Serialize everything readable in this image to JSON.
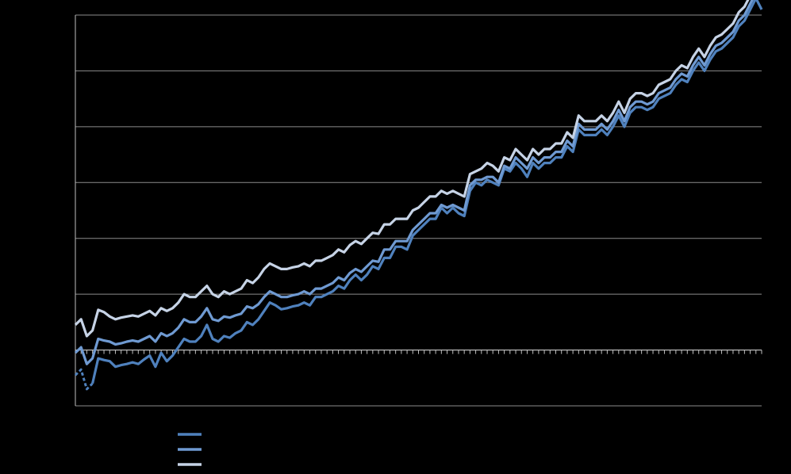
{
  "chart_data": {
    "type": "line",
    "title": "",
    "xlabel": "",
    "ylabel": "",
    "tick_labels_printed": false,
    "ylim": [
      -1,
      6
    ],
    "xlim": [
      0,
      120
    ],
    "grid": true,
    "y_gridlines": [
      -1,
      0,
      1,
      2,
      3,
      4,
      5,
      6
    ],
    "x_minor_ticks_on_zero_axis": 120,
    "legend_position": "bottom-left",
    "colors": {
      "background": "#000000",
      "grid": "#8c8c8c",
      "axis": "#bfbfbf",
      "series": [
        "#4f81bd",
        "#6f9ad2",
        "#c6d3e6"
      ]
    },
    "x": [
      0,
      1,
      2,
      3,
      4,
      5,
      6,
      7,
      8,
      9,
      10,
      11,
      12,
      13,
      14,
      15,
      16,
      17,
      18,
      19,
      20,
      21,
      22,
      23,
      24,
      25,
      26,
      27,
      28,
      29,
      30,
      31,
      32,
      33,
      34,
      35,
      36,
      37,
      38,
      39,
      40,
      41,
      42,
      43,
      44,
      45,
      46,
      47,
      48,
      49,
      50,
      51,
      52,
      53,
      54,
      55,
      56,
      57,
      58,
      59,
      60,
      61,
      62,
      63,
      64,
      65,
      66,
      67,
      68,
      69,
      70,
      71,
      72,
      73,
      74,
      75,
      76,
      77,
      78,
      79,
      80,
      81,
      82,
      83,
      84,
      85,
      86,
      87,
      88,
      89,
      90,
      91,
      92,
      93,
      94,
      95,
      96,
      97,
      98,
      99,
      100,
      101,
      102,
      103,
      104,
      105,
      106,
      107,
      108,
      109,
      110,
      111,
      112,
      113,
      114,
      115,
      116,
      117,
      118,
      119,
      120
    ],
    "series": [
      {
        "name": "",
        "dashed_until_index": 3,
        "values": [
          -0.45,
          -0.35,
          -0.7,
          -0.6,
          -0.15,
          -0.18,
          -0.2,
          -0.3,
          -0.27,
          -0.25,
          -0.22,
          -0.25,
          -0.17,
          -0.1,
          -0.3,
          -0.05,
          -0.2,
          -0.1,
          0.05,
          0.2,
          0.15,
          0.15,
          0.25,
          0.45,
          0.2,
          0.15,
          0.25,
          0.22,
          0.3,
          0.35,
          0.5,
          0.45,
          0.55,
          0.7,
          0.85,
          0.8,
          0.73,
          0.75,
          0.78,
          0.8,
          0.85,
          0.8,
          0.95,
          0.95,
          1.0,
          1.05,
          1.15,
          1.1,
          1.25,
          1.35,
          1.25,
          1.35,
          1.5,
          1.45,
          1.65,
          1.65,
          1.85,
          1.85,
          1.8,
          2.05,
          2.15,
          2.25,
          2.35,
          2.35,
          2.55,
          2.45,
          2.55,
          2.45,
          2.4,
          2.85,
          3.0,
          2.95,
          3.05,
          3.0,
          2.95,
          3.25,
          3.2,
          3.35,
          3.25,
          3.1,
          3.35,
          3.25,
          3.35,
          3.35,
          3.45,
          3.45,
          3.65,
          3.55,
          3.95,
          3.85,
          3.85,
          3.85,
          3.95,
          3.85,
          4.0,
          4.2,
          4.0,
          4.25,
          4.35,
          4.35,
          4.3,
          4.35,
          4.5,
          4.55,
          4.6,
          4.75,
          4.85,
          4.8,
          5.0,
          5.15,
          5.0,
          5.2,
          5.35,
          5.4,
          5.5,
          5.6,
          5.8,
          5.9,
          6.1,
          6.3,
          6.1
        ]
      },
      {
        "name": "",
        "values": [
          -0.05,
          0.05,
          -0.25,
          -0.15,
          0.2,
          0.17,
          0.15,
          0.1,
          0.12,
          0.15,
          0.17,
          0.15,
          0.2,
          0.25,
          0.15,
          0.3,
          0.25,
          0.3,
          0.4,
          0.55,
          0.5,
          0.5,
          0.6,
          0.75,
          0.55,
          0.52,
          0.6,
          0.58,
          0.62,
          0.65,
          0.78,
          0.75,
          0.82,
          0.95,
          1.05,
          1.0,
          0.95,
          0.95,
          0.98,
          1.0,
          1.05,
          1.0,
          1.1,
          1.1,
          1.15,
          1.2,
          1.3,
          1.25,
          1.38,
          1.45,
          1.4,
          1.5,
          1.6,
          1.58,
          1.8,
          1.8,
          1.95,
          1.95,
          1.95,
          2.15,
          2.25,
          2.35,
          2.45,
          2.45,
          2.6,
          2.55,
          2.6,
          2.55,
          2.5,
          2.95,
          3.05,
          3.05,
          3.1,
          3.1,
          3.0,
          3.3,
          3.25,
          3.45,
          3.35,
          3.25,
          3.45,
          3.35,
          3.45,
          3.45,
          3.55,
          3.55,
          3.75,
          3.65,
          4.05,
          3.95,
          3.95,
          3.95,
          4.05,
          3.95,
          4.1,
          4.3,
          4.1,
          4.35,
          4.45,
          4.45,
          4.4,
          4.45,
          4.6,
          4.65,
          4.7,
          4.85,
          4.95,
          4.9,
          5.1,
          5.25,
          5.1,
          5.3,
          5.45,
          5.5,
          5.6,
          5.7,
          5.9,
          6.0,
          6.2,
          6.4,
          6.3
        ]
      },
      {
        "name": "",
        "values": [
          0.45,
          0.55,
          0.25,
          0.35,
          0.72,
          0.68,
          0.6,
          0.55,
          0.58,
          0.6,
          0.62,
          0.6,
          0.65,
          0.7,
          0.62,
          0.75,
          0.7,
          0.75,
          0.85,
          1.0,
          0.95,
          0.95,
          1.05,
          1.15,
          1.0,
          0.95,
          1.05,
          1.0,
          1.05,
          1.1,
          1.25,
          1.2,
          1.3,
          1.45,
          1.55,
          1.5,
          1.45,
          1.45,
          1.48,
          1.5,
          1.55,
          1.5,
          1.6,
          1.6,
          1.65,
          1.7,
          1.8,
          1.75,
          1.88,
          1.95,
          1.9,
          2.0,
          2.1,
          2.08,
          2.25,
          2.25,
          2.35,
          2.35,
          2.35,
          2.5,
          2.55,
          2.65,
          2.75,
          2.75,
          2.85,
          2.8,
          2.85,
          2.8,
          2.75,
          3.15,
          3.2,
          3.25,
          3.35,
          3.3,
          3.2,
          3.45,
          3.4,
          3.6,
          3.5,
          3.4,
          3.6,
          3.5,
          3.6,
          3.6,
          3.7,
          3.7,
          3.9,
          3.8,
          4.2,
          4.1,
          4.1,
          4.1,
          4.2,
          4.1,
          4.25,
          4.45,
          4.25,
          4.5,
          4.6,
          4.6,
          4.55,
          4.6,
          4.75,
          4.8,
          4.85,
          5.0,
          5.1,
          5.05,
          5.25,
          5.4,
          5.25,
          5.45,
          5.6,
          5.65,
          5.75,
          5.85,
          6.05,
          6.15,
          6.35,
          6.55,
          6.4
        ]
      }
    ],
    "legend": [
      {
        "label": "",
        "color": "#4f81bd"
      },
      {
        "label": "",
        "color": "#6f9ad2"
      },
      {
        "label": "",
        "color": "#c6d3e6"
      }
    ]
  }
}
